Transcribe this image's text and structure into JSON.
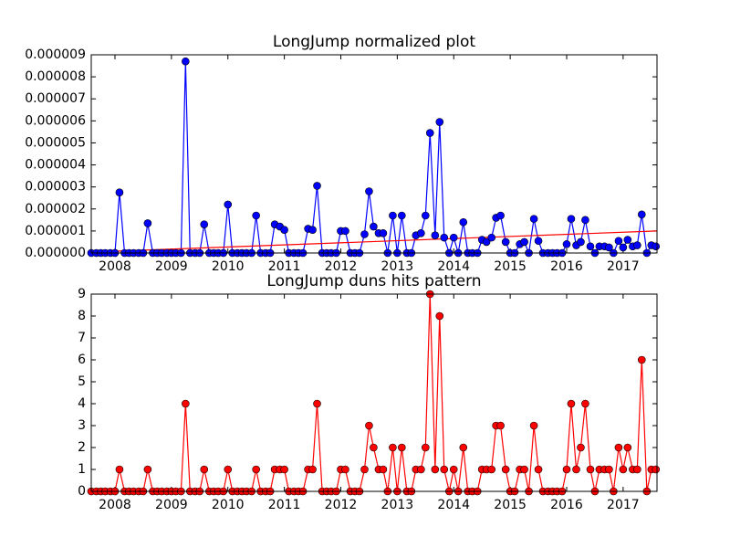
{
  "chart_data": [
    {
      "type": "line",
      "title": "LongJump normalized plot",
      "x": [
        2007.58,
        2007.67,
        2007.75,
        2007.83,
        2007.92,
        2008.0,
        2008.08,
        2008.17,
        2008.25,
        2008.33,
        2008.42,
        2008.5,
        2008.58,
        2008.67,
        2008.75,
        2008.83,
        2008.92,
        2009.0,
        2009.08,
        2009.17,
        2009.25,
        2009.33,
        2009.42,
        2009.5,
        2009.58,
        2009.67,
        2009.75,
        2009.83,
        2009.92,
        2010.0,
        2010.08,
        2010.17,
        2010.25,
        2010.33,
        2010.42,
        2010.5,
        2010.58,
        2010.67,
        2010.75,
        2010.83,
        2010.92,
        2011.0,
        2011.08,
        2011.17,
        2011.25,
        2011.33,
        2011.42,
        2011.5,
        2011.58,
        2011.67,
        2011.75,
        2011.83,
        2011.92,
        2012.0,
        2012.08,
        2012.17,
        2012.25,
        2012.33,
        2012.42,
        2012.5,
        2012.58,
        2012.67,
        2012.75,
        2012.83,
        2012.92,
        2013.0,
        2013.08,
        2013.17,
        2013.25,
        2013.33,
        2013.42,
        2013.5,
        2013.58,
        2013.67,
        2013.75,
        2013.83,
        2013.92,
        2014.0,
        2014.08,
        2014.17,
        2014.25,
        2014.33,
        2014.42,
        2014.5,
        2014.58,
        2014.67,
        2014.75,
        2014.83,
        2014.92,
        2015.0,
        2015.08,
        2015.17,
        2015.25,
        2015.33,
        2015.42,
        2015.5,
        2015.58,
        2015.67,
        2015.75,
        2015.83,
        2015.92,
        2016.0,
        2016.08,
        2016.17,
        2016.25,
        2016.33,
        2016.42,
        2016.5,
        2016.58,
        2016.67,
        2016.75,
        2016.83,
        2016.92,
        2017.0,
        2017.08,
        2017.17,
        2017.25,
        2017.33,
        2017.42,
        2017.5,
        2017.58
      ],
      "series": [
        {
          "color": "#0000ff",
          "values": [
            0,
            0,
            0,
            0,
            0,
            0,
            2.75e-06,
            0,
            0,
            0,
            0,
            0,
            1.35e-06,
            0,
            0,
            0,
            0,
            0,
            0,
            0,
            8.7e-06,
            0,
            0,
            0,
            1.3e-06,
            0,
            0,
            0,
            0,
            2.2e-06,
            0,
            0,
            0,
            0,
            0,
            1.7e-06,
            0,
            0,
            0,
            1.3e-06,
            1.2e-06,
            1.05e-06,
            0,
            0,
            0,
            0,
            1.1e-06,
            1.05e-06,
            3.05e-06,
            0,
            0,
            0,
            0,
            1e-06,
            1e-06,
            0,
            0,
            0,
            8.5e-07,
            2.8e-06,
            1.2e-06,
            9e-07,
            9e-07,
            0,
            1.7e-06,
            0,
            1.7e-06,
            0,
            0,
            8e-07,
            9e-07,
            1.7e-06,
            5.45e-06,
            8e-07,
            5.95e-06,
            7e-07,
            0,
            7e-07,
            0,
            1.4e-06,
            0,
            0,
            0,
            6e-07,
            5e-07,
            7e-07,
            1.6e-06,
            1.7e-06,
            5e-07,
            0,
            0,
            4e-07,
            5e-07,
            0,
            1.55e-06,
            5.5e-07,
            0,
            0,
            0,
            0,
            0,
            4e-07,
            1.55e-06,
            3.5e-07,
            5e-07,
            1.5e-06,
            3e-07,
            0,
            3e-07,
            3e-07,
            2.5e-07,
            0,
            5.5e-07,
            2.5e-07,
            6e-07,
            3e-07,
            3.5e-07,
            1.75e-06,
            0,
            3.5e-07,
            3e-07
          ]
        }
      ],
      "trend": {
        "color": "#ff0000",
        "x": [
          2007.58,
          2017.6
        ],
        "values": [
          4e-08,
          1e-06
        ]
      },
      "xlim": [
        2007.58,
        2017.6
      ],
      "xticks": [
        2008,
        2009,
        2010,
        2011,
        2012,
        2013,
        2014,
        2015,
        2016,
        2017
      ],
      "ylim": [
        0,
        9e-06
      ],
      "yticks": [
        {
          "value": 0,
          "label": "0.000000"
        },
        {
          "value": 1e-06,
          "label": "0.000001"
        },
        {
          "value": 2e-06,
          "label": "0.000002"
        },
        {
          "value": 3e-06,
          "label": "0.000003"
        },
        {
          "value": 4e-06,
          "label": "0.000004"
        },
        {
          "value": 5e-06,
          "label": "0.000005"
        },
        {
          "value": 6e-06,
          "label": "0.000006"
        },
        {
          "value": 7e-06,
          "label": "0.000007"
        },
        {
          "value": 8e-06,
          "label": "0.000008"
        },
        {
          "value": 9e-06,
          "label": "0.000009"
        }
      ]
    },
    {
      "type": "line",
      "title": "LongJump duns hits pattern",
      "x": [
        2007.58,
        2007.67,
        2007.75,
        2007.83,
        2007.92,
        2008.0,
        2008.08,
        2008.17,
        2008.25,
        2008.33,
        2008.42,
        2008.5,
        2008.58,
        2008.67,
        2008.75,
        2008.83,
        2008.92,
        2009.0,
        2009.08,
        2009.17,
        2009.25,
        2009.33,
        2009.42,
        2009.5,
        2009.58,
        2009.67,
        2009.75,
        2009.83,
        2009.92,
        2010.0,
        2010.08,
        2010.17,
        2010.25,
        2010.33,
        2010.42,
        2010.5,
        2010.58,
        2010.67,
        2010.75,
        2010.83,
        2010.92,
        2011.0,
        2011.08,
        2011.17,
        2011.25,
        2011.33,
        2011.42,
        2011.5,
        2011.58,
        2011.67,
        2011.75,
        2011.83,
        2011.92,
        2012.0,
        2012.08,
        2012.17,
        2012.25,
        2012.33,
        2012.42,
        2012.5,
        2012.58,
        2012.67,
        2012.75,
        2012.83,
        2012.92,
        2013.0,
        2013.08,
        2013.17,
        2013.25,
        2013.33,
        2013.42,
        2013.5,
        2013.58,
        2013.67,
        2013.75,
        2013.83,
        2013.92,
        2014.0,
        2014.08,
        2014.17,
        2014.25,
        2014.33,
        2014.42,
        2014.5,
        2014.58,
        2014.67,
        2014.75,
        2014.83,
        2014.92,
        2015.0,
        2015.08,
        2015.17,
        2015.25,
        2015.33,
        2015.42,
        2015.5,
        2015.58,
        2015.67,
        2015.75,
        2015.83,
        2015.92,
        2016.0,
        2016.08,
        2016.17,
        2016.25,
        2016.33,
        2016.42,
        2016.5,
        2016.58,
        2016.67,
        2016.75,
        2016.83,
        2016.92,
        2017.0,
        2017.08,
        2017.17,
        2017.25,
        2017.33,
        2017.42,
        2017.5,
        2017.58
      ],
      "series": [
        {
          "color": "#ff0000",
          "values": [
            0,
            0,
            0,
            0,
            0,
            0,
            1,
            0,
            0,
            0,
            0,
            0,
            1,
            0,
            0,
            0,
            0,
            0,
            0,
            0,
            4,
            0,
            0,
            0,
            1,
            0,
            0,
            0,
            0,
            1,
            0,
            0,
            0,
            0,
            0,
            1,
            0,
            0,
            0,
            1,
            1,
            1,
            0,
            0,
            0,
            0,
            1,
            1,
            4,
            0,
            0,
            0,
            0,
            1,
            1,
            0,
            0,
            0,
            1,
            3,
            2,
            1,
            1,
            0,
            2,
            0,
            2,
            0,
            0,
            1,
            1,
            2,
            9,
            1,
            8,
            1,
            0,
            1,
            0,
            2,
            0,
            0,
            0,
            1,
            1,
            1,
            3,
            3,
            1,
            0,
            0,
            1,
            1,
            0,
            3,
            1,
            0,
            0,
            0,
            0,
            0,
            1,
            4,
            1,
            2,
            4,
            1,
            0,
            1,
            1,
            1,
            0,
            2,
            1,
            2,
            1,
            1,
            6,
            0,
            1,
            1
          ]
        }
      ],
      "xlim": [
        2007.58,
        2017.6
      ],
      "xticks": [
        2008,
        2009,
        2010,
        2011,
        2012,
        2013,
        2014,
        2015,
        2016,
        2017
      ],
      "ylim": [
        0,
        9
      ],
      "yticks": [
        0,
        1,
        2,
        3,
        4,
        5,
        6,
        7,
        8,
        9
      ]
    }
  ]
}
